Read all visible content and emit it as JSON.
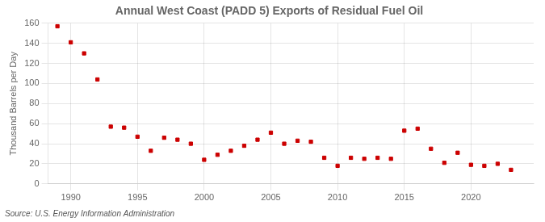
{
  "chart_data": {
    "type": "scatter",
    "title": "Annual West Coast (PADD 5) Exports of Residual Fuel Oil",
    "ylabel": "Thousand Barrels per Day",
    "annotation": "Source: U.S. Energy Information Administration",
    "x": [
      1989,
      1990,
      1991,
      1992,
      1993,
      1994,
      1995,
      1996,
      1997,
      1998,
      1999,
      2000,
      2001,
      2002,
      2003,
      2004,
      2005,
      2006,
      2007,
      2008,
      2009,
      2010,
      2011,
      2012,
      2013,
      2014,
      2015,
      2016,
      2017,
      2018,
      2019,
      2020,
      2021,
      2022,
      2023
    ],
    "values": [
      157,
      141,
      130,
      104,
      57,
      56,
      47,
      33,
      46,
      44,
      40,
      24,
      29,
      33,
      38,
      44,
      51,
      40,
      43,
      42,
      26,
      18,
      26,
      25,
      26,
      25,
      53,
      55,
      35,
      21,
      31,
      19,
      18,
      20,
      14
    ],
    "color": "#cc0000",
    "marker": "square",
    "xlim": [
      1988.3,
      2024.7
    ],
    "xticks": [
      1990,
      1995,
      2000,
      2005,
      2010,
      2015,
      2020
    ],
    "ylim": [
      0,
      160
    ],
    "yticks": [
      0,
      20,
      40,
      60,
      80,
      100,
      120,
      140,
      160
    ],
    "grid": true
  }
}
